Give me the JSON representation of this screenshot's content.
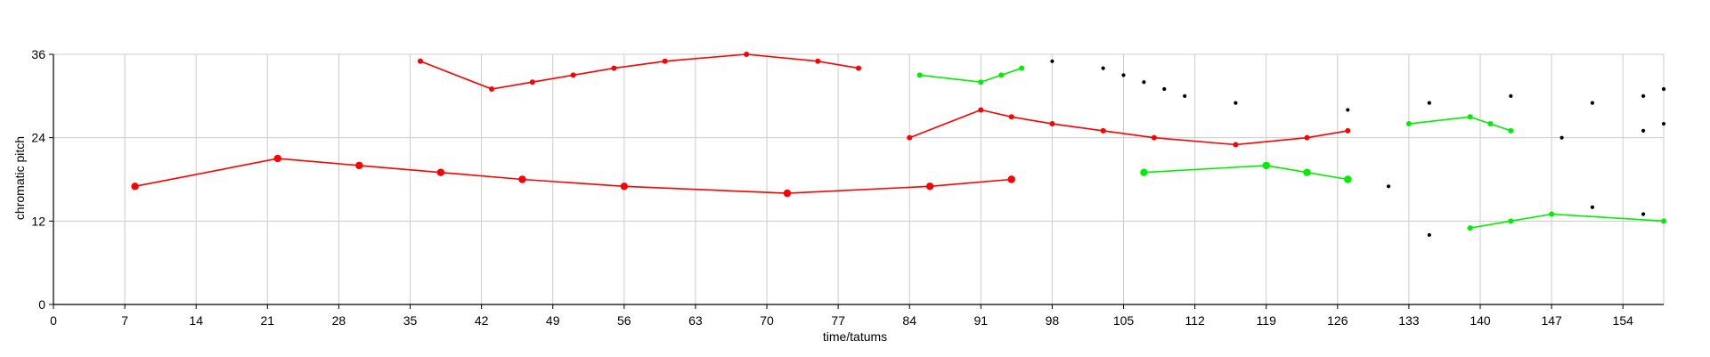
{
  "chart_data": {
    "type": "line",
    "title": "",
    "xlabel": "time/tatums",
    "ylabel": "chromatic pitch",
    "xlim": [
      0,
      158
    ],
    "ylim": [
      0,
      36
    ],
    "xticks": [
      0,
      7,
      14,
      21,
      28,
      35,
      42,
      49,
      56,
      63,
      70,
      77,
      84,
      91,
      98,
      105,
      112,
      119,
      126,
      133,
      140,
      147,
      154
    ],
    "yticks": [
      0,
      12,
      24,
      36
    ],
    "grid": true,
    "colors": {
      "red": "#ff0000",
      "green": "#00ee00",
      "black": "#000000",
      "grid": "#cccccc"
    },
    "series": [
      {
        "color": "red",
        "marker": "large",
        "points": [
          [
            8,
            17
          ],
          [
            22,
            21
          ],
          [
            30,
            20
          ],
          [
            38,
            19
          ],
          [
            46,
            18
          ],
          [
            56,
            17
          ],
          [
            72,
            16
          ],
          [
            86,
            17
          ],
          [
            94,
            18
          ]
        ]
      },
      {
        "color": "red",
        "marker": "small",
        "points": [
          [
            36,
            35
          ],
          [
            43,
            31
          ],
          [
            47,
            32
          ],
          [
            51,
            33
          ],
          [
            55,
            34
          ],
          [
            60,
            35
          ],
          [
            68,
            36
          ],
          [
            75,
            35
          ],
          [
            79,
            34
          ]
        ]
      },
      {
        "color": "red",
        "marker": "small",
        "points": [
          [
            84,
            24
          ],
          [
            91,
            28
          ],
          [
            94,
            27
          ],
          [
            98,
            26
          ],
          [
            103,
            25
          ],
          [
            108,
            24
          ],
          [
            116,
            23
          ],
          [
            123,
            24
          ],
          [
            127,
            25
          ]
        ]
      },
      {
        "color": "green",
        "marker": "small",
        "points": [
          [
            85,
            33
          ],
          [
            91,
            32
          ],
          [
            93,
            33
          ],
          [
            95,
            34
          ]
        ]
      },
      {
        "color": "green",
        "marker": "large",
        "points": [
          [
            107,
            19
          ],
          [
            119,
            20
          ],
          [
            123,
            19
          ],
          [
            127,
            18
          ]
        ]
      },
      {
        "color": "green",
        "marker": "small",
        "points": [
          [
            133,
            26
          ],
          [
            139,
            27
          ],
          [
            141,
            26
          ],
          [
            143,
            25
          ]
        ]
      },
      {
        "color": "green",
        "marker": "small",
        "points": [
          [
            139,
            11
          ],
          [
            143,
            12
          ],
          [
            147,
            13
          ],
          [
            158,
            12
          ]
        ]
      },
      {
        "color": "black",
        "marker": "dot",
        "points": [
          [
            98,
            35
          ],
          [
            103,
            34
          ],
          [
            105,
            33
          ],
          [
            107,
            32
          ],
          [
            109,
            31
          ],
          [
            111,
            30
          ],
          [
            116,
            29
          ],
          [
            127,
            28
          ],
          [
            131,
            17
          ],
          [
            135,
            29
          ],
          [
            135,
            10
          ],
          [
            143,
            30
          ],
          [
            148,
            24
          ],
          [
            151,
            29
          ],
          [
            151,
            14
          ],
          [
            156,
            30
          ],
          [
            156,
            25
          ],
          [
            156,
            13
          ],
          [
            158,
            31
          ],
          [
            158,
            26
          ]
        ]
      }
    ]
  }
}
